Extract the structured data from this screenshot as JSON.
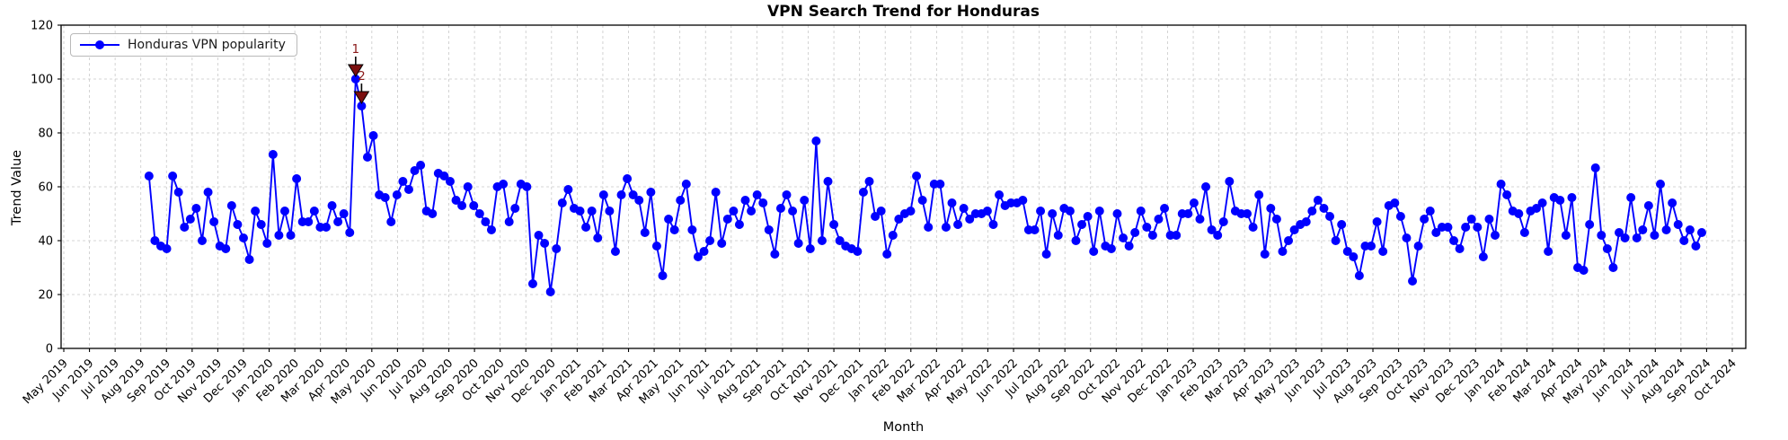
{
  "chart_data": {
    "type": "line",
    "title": "VPN Search Trend for Honduras",
    "xlabel": "Month",
    "ylabel": "Trend Value",
    "grid": true,
    "legend_position": "upper left",
    "ylim": [
      0,
      120
    ],
    "y_ticks": [
      0,
      20,
      40,
      60,
      80,
      100,
      120
    ],
    "x_tick_labels": [
      "May 2019",
      "Jun 2019",
      "Jul 2019",
      "Aug 2019",
      "Sep 2019",
      "Oct 2019",
      "Nov 2019",
      "Dec 2019",
      "Jan 2020",
      "Feb 2020",
      "Mar 2020",
      "Apr 2020",
      "May 2020",
      "Jun 2020",
      "Jul 2020",
      "Aug 2020",
      "Sep 2020",
      "Oct 2020",
      "Nov 2020",
      "Dec 2020",
      "Jan 2021",
      "Feb 2021",
      "Mar 2021",
      "Apr 2021",
      "May 2021",
      "Jun 2021",
      "Jul 2021",
      "Aug 2021",
      "Sep 2021",
      "Oct 2021",
      "Nov 2021",
      "Dec 2021",
      "Jan 2022",
      "Feb 2022",
      "Mar 2022",
      "Apr 2022",
      "May 2022",
      "Jun 2022",
      "Jul 2022",
      "Aug 2022",
      "Sep 2022",
      "Oct 2022",
      "Nov 2022",
      "Dec 2022",
      "Jan 2023",
      "Feb 2023",
      "Mar 2023",
      "Apr 2023",
      "May 2023",
      "Jun 2023",
      "Jul 2023",
      "Aug 2023",
      "Sep 2023",
      "Oct 2023",
      "Nov 2023",
      "Dec 2023",
      "Jan 2024",
      "Feb 2024",
      "Mar 2024",
      "Apr 2024",
      "May 2024",
      "Jun 2024",
      "Jul 2024",
      "Aug 2024",
      "Sep 2024",
      "Oct 2024"
    ],
    "series": [
      {
        "name": "Honduras VPN popularity",
        "color": "#0000ff",
        "marker": "circle",
        "cadence": "weekly",
        "first_point_near": "Aug 2019",
        "last_point_near": "Jul 2024",
        "values": [
          64,
          40,
          38,
          37,
          64,
          58,
          45,
          48,
          52,
          40,
          58,
          47,
          38,
          37,
          53,
          46,
          41,
          33,
          51,
          46,
          39,
          72,
          42,
          51,
          42,
          63,
          47,
          47,
          51,
          45,
          45,
          53,
          47,
          50,
          43,
          100,
          90,
          71,
          79,
          57,
          56,
          47,
          57,
          62,
          59,
          66,
          68,
          51,
          50,
          65,
          64,
          62,
          55,
          53,
          60,
          53,
          50,
          47,
          44,
          60,
          61,
          47,
          52,
          61,
          60,
          24,
          42,
          39,
          21,
          37,
          54,
          59,
          52,
          51,
          45,
          51,
          41,
          57,
          51,
          36,
          57,
          63,
          57,
          55,
          43,
          58,
          38,
          27,
          48,
          44,
          55,
          61,
          44,
          34,
          36,
          40,
          58,
          39,
          48,
          51,
          46,
          55,
          51,
          57,
          54,
          44,
          35,
          52,
          57,
          51,
          39,
          55,
          37,
          77,
          40,
          62,
          46,
          40,
          38,
          37,
          36,
          58,
          62,
          49,
          51,
          35,
          42,
          48,
          50,
          51,
          64,
          55,
          45,
          61,
          61,
          45,
          54,
          46,
          52,
          48,
          50,
          50,
          51,
          46,
          57,
          53,
          54,
          54,
          55,
          44,
          44,
          51,
          35,
          50,
          42,
          52,
          51,
          40,
          46,
          49,
          36,
          51,
          38,
          37,
          50,
          41,
          38,
          43,
          51,
          45,
          42,
          48,
          52,
          42,
          42,
          50,
          50,
          54,
          48,
          60,
          44,
          42,
          47,
          62,
          51,
          50,
          50,
          45,
          57,
          35,
          52,
          48,
          36,
          40,
          44,
          46,
          47,
          51,
          55,
          52,
          49,
          40,
          46,
          36,
          34,
          27,
          38,
          38,
          47,
          36,
          53,
          54,
          49,
          41,
          25,
          38,
          48,
          51,
          43,
          45,
          45,
          40,
          37,
          45,
          48,
          45,
          34,
          48,
          42,
          61,
          57,
          51,
          50,
          43,
          51,
          52,
          54,
          36,
          56,
          55,
          42,
          56,
          30,
          29,
          46,
          67,
          42,
          37,
          30,
          43,
          41,
          56,
          41,
          44,
          53,
          42,
          61,
          44,
          54,
          46,
          40,
          44,
          38,
          43
        ]
      }
    ],
    "annotations": [
      {
        "label": "1",
        "point_index": 35,
        "value": 100,
        "marker": "triangle-down",
        "marker_color": "#7b0f0f",
        "text_color": "#8b1a1a"
      },
      {
        "label": "2",
        "point_index": 36,
        "value": 90,
        "marker": "triangle-down",
        "marker_color": "#7b0f0f",
        "text_color": "#8b1a1a"
      }
    ],
    "style": {
      "line_color": "#0000ff",
      "grid_color": "#c9c9c9",
      "axis_color": "#000000",
      "background": "#ffffff"
    }
  }
}
